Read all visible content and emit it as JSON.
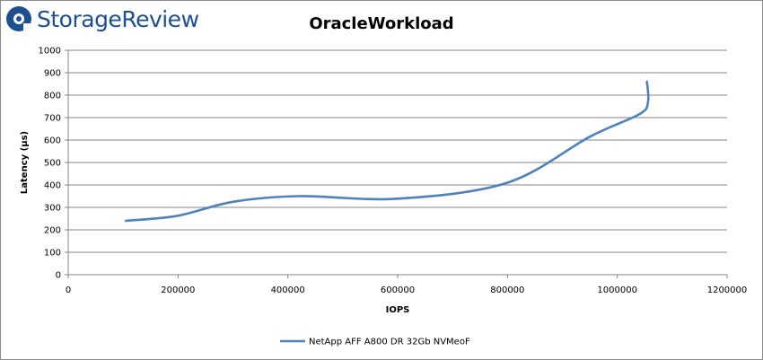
{
  "brand": {
    "name": "StorageReview",
    "logo_color": "#1d4f91"
  },
  "chart_data": {
    "type": "line",
    "title": "OracleWorkload",
    "xlabel": "IOPS",
    "ylabel": "Latency (µs)",
    "xlim": [
      0,
      1200000
    ],
    "ylim": [
      0,
      1000
    ],
    "xticks": [
      0,
      200000,
      400000,
      600000,
      800000,
      1000000,
      1200000
    ],
    "yticks": [
      0,
      100,
      200,
      300,
      400,
      500,
      600,
      700,
      800,
      900,
      1000
    ],
    "grid": "horizontal",
    "legend": "bottom",
    "series": [
      {
        "name": "NetApp AFF A800 DR 32Gb NVMeoF",
        "color": "#4f81bd",
        "x": [
          105000,
          200000,
          300000,
          420000,
          600000,
          800000,
          950000,
          1040000,
          1056000,
          1054000
        ],
        "y": [
          240,
          263,
          325,
          350,
          339,
          410,
          615,
          715,
          770,
          860
        ]
      }
    ]
  }
}
